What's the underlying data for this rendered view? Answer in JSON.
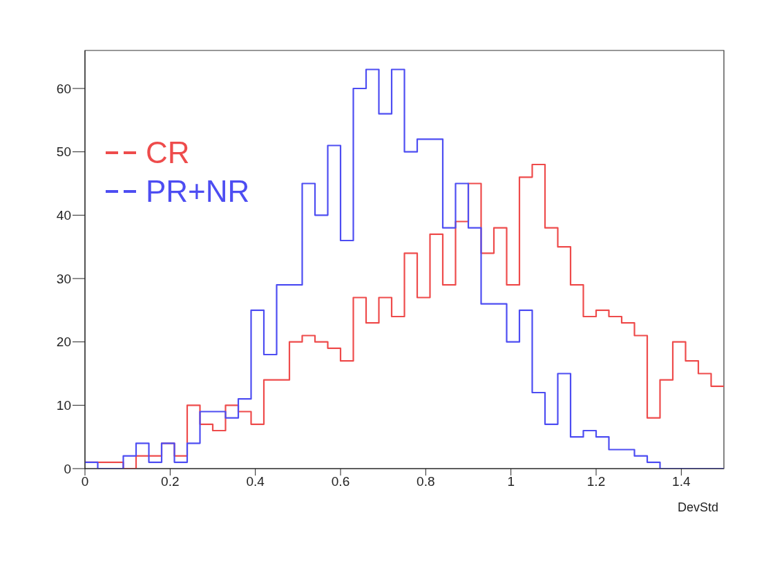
{
  "chart_data": {
    "type": "histogram",
    "xlabel": "DevStd",
    "bins": [
      0,
      0.03,
      0.06,
      0.09,
      0.12,
      0.15,
      0.18,
      0.21,
      0.24,
      0.27,
      0.3,
      0.33,
      0.36,
      0.39,
      0.42,
      0.45,
      0.48,
      0.51,
      0.54,
      0.57,
      0.6,
      0.63,
      0.66,
      0.69,
      0.72,
      0.75,
      0.78,
      0.81,
      0.84,
      0.87,
      0.9,
      0.93,
      0.96,
      0.99,
      1.02,
      1.05,
      1.08,
      1.11,
      1.14,
      1.17,
      1.2,
      1.23,
      1.26,
      1.29,
      1.32,
      1.35,
      1.38,
      1.41,
      1.44,
      1.47,
      1.5
    ],
    "series": [
      {
        "name": "CR",
        "color": "#ee4b4b",
        "values": [
          1,
          1,
          1,
          0,
          2,
          2,
          4,
          2,
          10,
          7,
          6,
          10,
          9,
          7,
          14,
          14,
          20,
          21,
          20,
          19,
          17,
          27,
          23,
          27,
          24,
          34,
          27,
          37,
          29,
          39,
          45,
          34,
          38,
          29,
          46,
          48,
          38,
          35,
          29,
          24,
          25,
          24,
          23,
          21,
          8,
          14,
          20,
          17,
          15,
          13
        ]
      },
      {
        "name": "PR+NR",
        "color": "#4d4df2",
        "values": [
          1,
          0,
          0,
          2,
          4,
          1,
          4,
          1,
          4,
          9,
          9,
          8,
          11,
          25,
          18,
          29,
          29,
          45,
          40,
          51,
          36,
          60,
          63,
          56,
          63,
          50,
          52,
          52,
          38,
          45,
          38,
          26,
          26,
          20,
          25,
          12,
          7,
          15,
          5,
          6,
          5,
          3,
          3,
          2,
          1,
          0,
          0,
          0,
          0,
          0
        ]
      }
    ],
    "xlim": [
      0,
      1.5
    ],
    "xticks": [
      0,
      0.2,
      0.4,
      0.6,
      0.8,
      1,
      1.2,
      1.4
    ],
    "ylim": [
      0,
      66
    ],
    "yticks": [
      0,
      10,
      20,
      30,
      40,
      50,
      60
    ],
    "grid": false,
    "legend": "top left"
  }
}
